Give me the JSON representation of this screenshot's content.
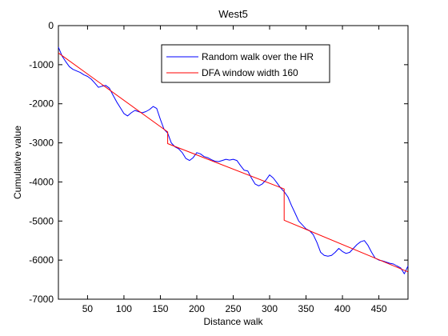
{
  "chart_data": {
    "type": "line",
    "title": "West5",
    "xlabel": "Distance walk",
    "ylabel": "Cumulative value",
    "xlim": [
      10,
      490
    ],
    "ylim": [
      -7000,
      0
    ],
    "xticks": [
      50,
      100,
      150,
      200,
      250,
      300,
      350,
      400,
      450
    ],
    "yticks": [
      0,
      -1000,
      -2000,
      -3000,
      -4000,
      -5000,
      -6000,
      -7000
    ],
    "grid": false,
    "legend_position": "top-center",
    "series": [
      {
        "name": "Random walk over the HR",
        "color": "#0000ff",
        "x": [
          10,
          15,
          20,
          25,
          30,
          35,
          40,
          45,
          50,
          55,
          60,
          65,
          70,
          75,
          80,
          85,
          90,
          95,
          100,
          105,
          110,
          115,
          120,
          125,
          130,
          135,
          140,
          145,
          150,
          155,
          160,
          165,
          170,
          175,
          180,
          185,
          190,
          195,
          200,
          205,
          210,
          215,
          220,
          225,
          230,
          235,
          240,
          245,
          250,
          255,
          260,
          265,
          270,
          275,
          280,
          285,
          290,
          295,
          300,
          305,
          310,
          315,
          320,
          325,
          330,
          335,
          340,
          345,
          350,
          355,
          360,
          365,
          370,
          375,
          380,
          385,
          390,
          395,
          400,
          405,
          410,
          415,
          420,
          425,
          430,
          435,
          440,
          445,
          450,
          455,
          460,
          465,
          470,
          475,
          480,
          485,
          490
        ],
        "values": [
          -550,
          -780,
          -920,
          -1050,
          -1120,
          -1160,
          -1200,
          -1260,
          -1300,
          -1370,
          -1470,
          -1580,
          -1550,
          -1530,
          -1600,
          -1780,
          -1950,
          -2100,
          -2250,
          -2310,
          -2230,
          -2170,
          -2200,
          -2230,
          -2200,
          -2150,
          -2070,
          -2120,
          -2400,
          -2650,
          -2750,
          -3000,
          -3100,
          -3150,
          -3250,
          -3400,
          -3450,
          -3380,
          -3250,
          -3280,
          -3350,
          -3380,
          -3430,
          -3470,
          -3480,
          -3450,
          -3420,
          -3440,
          -3420,
          -3450,
          -3580,
          -3700,
          -3720,
          -3900,
          -4050,
          -4100,
          -4050,
          -3950,
          -3820,
          -3900,
          -4020,
          -4150,
          -4250,
          -4380,
          -4600,
          -4800,
          -5000,
          -5100,
          -5200,
          -5250,
          -5350,
          -5550,
          -5800,
          -5880,
          -5900,
          -5880,
          -5800,
          -5700,
          -5780,
          -5830,
          -5800,
          -5700,
          -5600,
          -5530,
          -5500,
          -5620,
          -5800,
          -5950,
          -6000,
          -6020,
          -6050,
          -6080,
          -6100,
          -6150,
          -6200,
          -6350,
          -6150
        ]
      },
      {
        "name": "DFA window width 160",
        "color": "#ff0000",
        "x": [
          10,
          160,
          160,
          320,
          320,
          490
        ],
        "values": [
          -700,
          -2720,
          -3020,
          -4180,
          -4980,
          -6300
        ]
      }
    ]
  }
}
